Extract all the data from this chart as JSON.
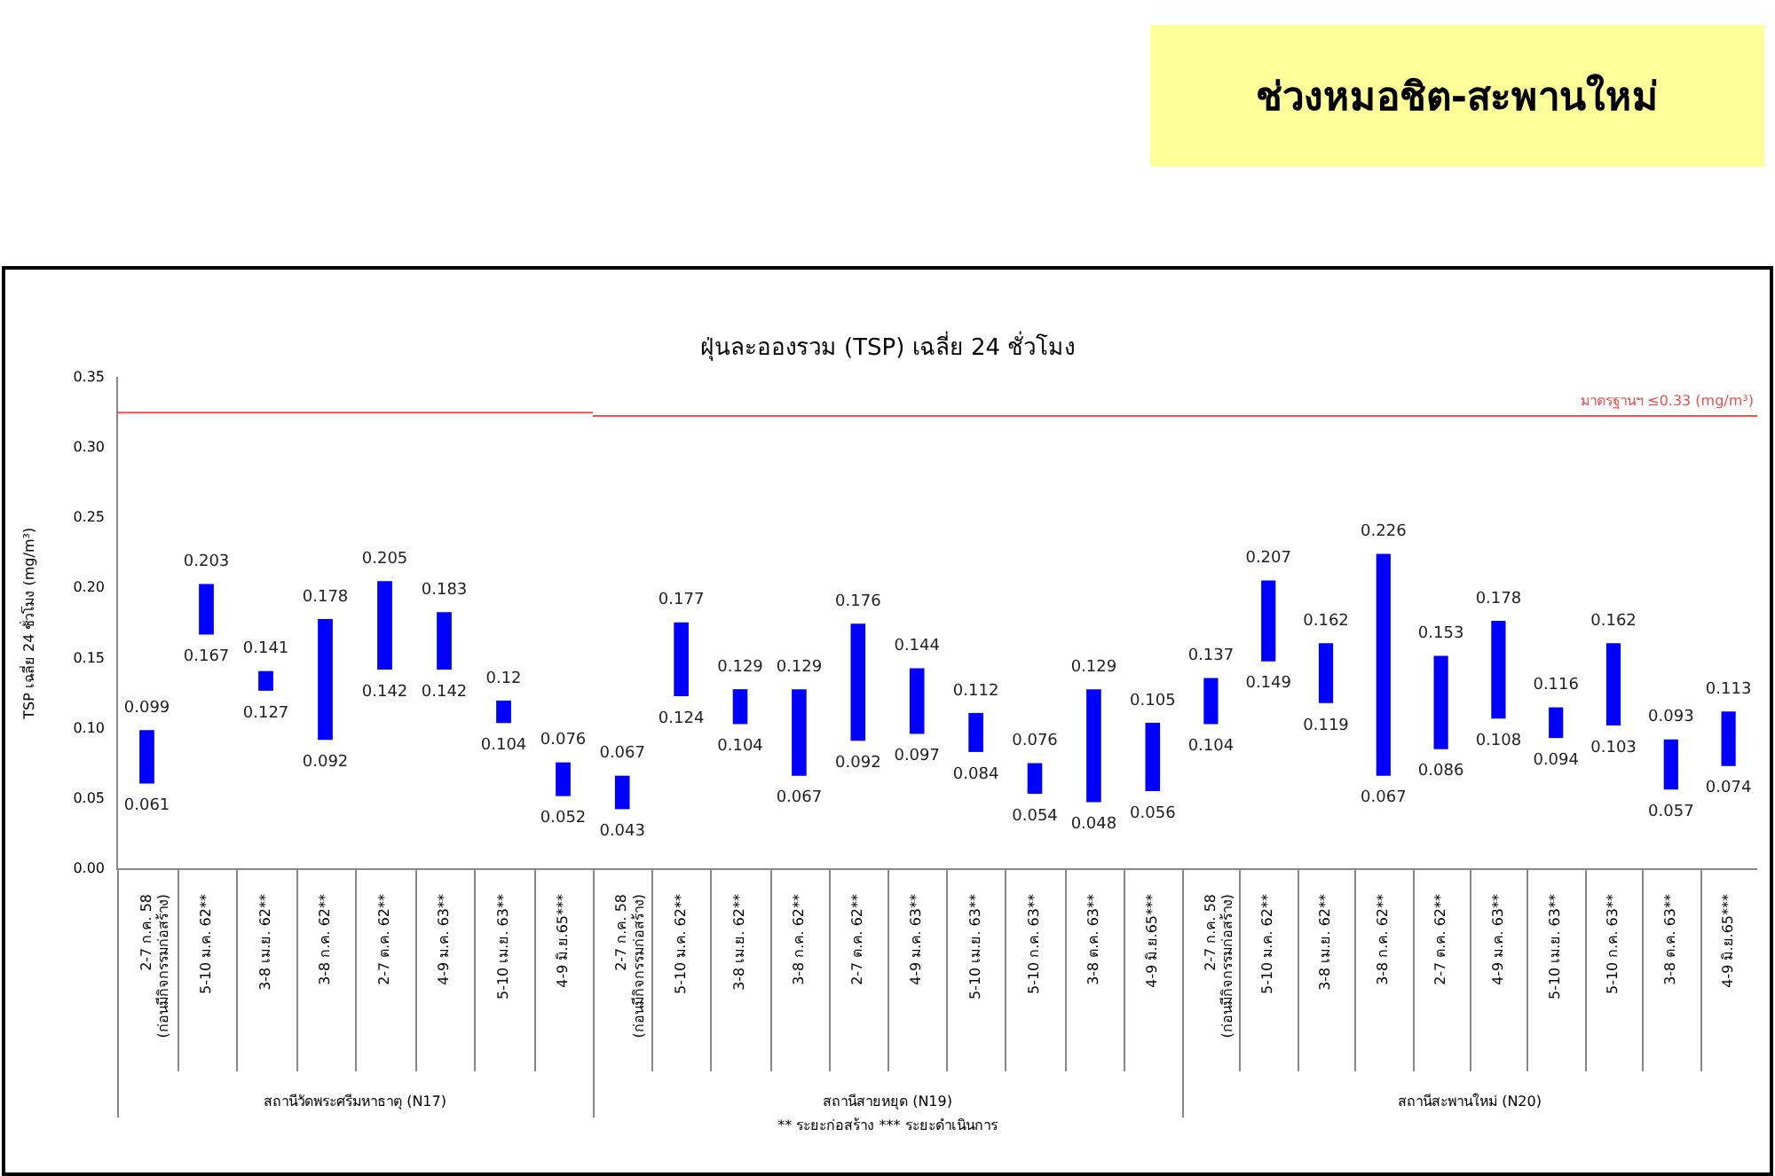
{
  "chart_data": [
    {
      "type": "bar",
      "ylabel": "TSP เฉลี่ย 24 ชั่วโมง (mg/m³)",
      "xlabel": "สถานีวัดพระศรีมหาธาตุ (N17)",
      "categories": [
        "2-7 ก.ค. 58\n(ก่อนมีกิจกรรมก่อสร้าง)",
        "5-10 ม.ค. 62**",
        "3-8 เม.ย. 62**",
        "3-8 ก.ค. 62**",
        "2-7 ต.ค. 62**",
        "4-9 ม.ค. 63**",
        "5-10 เม.ย. 63**",
        "4-9 มิ.ย.65***"
      ],
      "base": [
        0.061,
        0.167,
        0.127,
        0.092,
        0.142,
        0.142,
        0.104,
        0.052
      ],
      "values": [
        0.038,
        0.036,
        0.014,
        0.086,
        0.063,
        0.041,
        0.016,
        0.024
      ],
      "value_labels": [
        "0.099",
        "0.203",
        "0.141",
        "0.178",
        "0.205",
        "0.183",
        "0.12",
        "0.076"
      ],
      "color": "#0000ff",
      "ylim": [
        0,
        0.35
      ],
      "yticks": [
        {
          "value": 0,
          "label": "0.00"
        },
        {
          "value": 0.05,
          "label": "0.05"
        },
        {
          "value": 0.1,
          "label": "0.10"
        },
        {
          "value": 0.15,
          "label": "0.15"
        },
        {
          "value": 0.2,
          "label": "0.20"
        },
        {
          "value": 0.25,
          "label": "0.25"
        },
        {
          "value": 0.3,
          "label": "0.30"
        },
        {
          "value": 0.35,
          "label": "0.35"
        }
      ],
      "ref_lines": [
        {
          "axis": "y",
          "value": 0.325,
          "color": "#f05050"
        }
      ],
      "annotations": [
        {
          "text": "0.061",
          "x": "2-7 ก.ค. 58\n(ก่อนมีกิจกรรมก่อสร้าง)",
          "y": 0.061
        },
        {
          "text": "0.167",
          "x": "5-10 ม.ค. 62**",
          "y": 0.167
        },
        {
          "text": "0.127",
          "x": "3-8 เม.ย. 62**",
          "y": 0.127
        },
        {
          "text": "0.092",
          "x": "3-8 ก.ค. 62**",
          "y": 0.092
        },
        {
          "text": "0.142",
          "x": "2-7 ต.ค. 62**",
          "y": 0.142
        },
        {
          "text": "0.142",
          "x": "4-9 ม.ค. 63**",
          "y": 0.142
        },
        {
          "text": "0.104",
          "x": "5-10 เม.ย. 63**",
          "y": 0.104
        },
        {
          "text": "0.052",
          "x": "4-9 มิ.ย.65***",
          "y": 0.052
        }
      ]
    },
    {
      "type": "bar",
      "title": "ฝุ่นละอองรวม (TSP) เฉลี่ย 24 ชั่วโมง",
      "xlabel": "สถานีสายหยุด (N19)",
      "tick_labels": "x",
      "categories": [
        "2-7 ก.ค. 58\n(ก่อนมีกิจกรรมก่อสร้าง)",
        "5-10 ม.ค. 62**",
        "3-8 เม.ย. 62**",
        "3-8 ก.ค. 62**",
        "2-7 ต.ค. 62**",
        "4-9 ม.ค. 63**",
        "5-10 เม.ย. 63**",
        "5-10 ก.ค. 63**",
        "3-8 ต.ค. 63**",
        "4-9 มิ.ย.65***"
      ],
      "base": [
        0.043,
        0.124,
        0.104,
        0.067,
        0.092,
        0.097,
        0.084,
        0.054,
        0.048,
        0.056
      ],
      "values": [
        0.024,
        0.053,
        0.025,
        0.062,
        0.084,
        0.047,
        0.028,
        0.022,
        0.081,
        0.049
      ],
      "value_labels": [
        "0.067",
        "0.177",
        "0.129",
        "0.129",
        "0.176",
        "0.144",
        "0.112",
        "0.076",
        "0.129",
        "0.105"
      ],
      "color": "#0000ff",
      "ylim": [
        0,
        0.35
      ],
      "ref_lines": [
        {
          "axis": "y",
          "value": 0.325,
          "color": "#f05050"
        }
      ],
      "annotations": [
        "** ระยะก่อสร้าง    *** ระยะดำเนินการ",
        {
          "text": "0.043",
          "x": "2-7 ก.ค. 58\n(ก่อนมีกิจกรรมก่อสร้าง)",
          "y": 0.043
        },
        {
          "text": "0.124",
          "x": "5-10 ม.ค. 62**",
          "y": 0.124
        },
        {
          "text": "0.104",
          "x": "3-8 เม.ย. 62**",
          "y": 0.104
        },
        {
          "text": "0.067",
          "x": "3-8 ก.ค. 62**",
          "y": 0.067
        },
        {
          "text": "0.092",
          "x": "2-7 ต.ค. 62**",
          "y": 0.092
        },
        {
          "text": "0.097",
          "x": "4-9 ม.ค. 63**",
          "y": 0.097
        },
        {
          "text": "0.084",
          "x": "5-10 เม.ย. 63**",
          "y": 0.084
        },
        {
          "text": "0.054",
          "x": "5-10 ก.ค. 63**",
          "y": 0.054
        },
        {
          "text": "0.048",
          "x": "3-8 ต.ค. 63**",
          "y": 0.048
        },
        {
          "text": "0.056",
          "x": "4-9 มิ.ย.65***",
          "y": 0.056
        }
      ]
    },
    {
      "type": "bar",
      "xlabel": "สถานีสะพานใหม่ (N20)",
      "tick_labels": "x",
      "categories": [
        "2-7 ก.ค. 58\n(ก่อนมีกิจกรรมก่อสร้าง)",
        "5-10 ม.ค. 62**",
        "3-8 เม.ย. 62**",
        "3-8 ก.ค. 62**",
        "2-7 ต.ค. 62**",
        "4-9 ม.ค. 63**",
        "5-10 เม.ย. 63**",
        "5-10 ก.ค. 63**",
        "3-8 ต.ค. 63**",
        "4-9 มิ.ย.65***"
      ],
      "base": [
        0.104,
        0.149,
        0.119,
        0.067,
        0.086,
        0.108,
        0.094,
        0.103,
        0.057,
        0.074
      ],
      "values": [
        0.033,
        0.058,
        0.043,
        0.159,
        0.067,
        0.07,
        0.022,
        0.059,
        0.036,
        0.039
      ],
      "value_labels": [
        "0.137",
        "0.207",
        "0.162",
        "0.226",
        "0.153",
        "0.178",
        "0.116",
        "0.162",
        "0.093",
        "0.113"
      ],
      "color": "#0000ff",
      "ylim": [
        0,
        0.35
      ],
      "ref_lines": [
        {
          "axis": "y",
          "value": 0.325,
          "label": "มาตรฐานฯ ≤0.33 (mg/m³)",
          "color": "#f05050"
        }
      ],
      "annotations": [
        "ช่วงหมอชิต-สะพานใหม่",
        {
          "text": "0.104",
          "x": "2-7 ก.ค. 58\n(ก่อนมีกิจกรรมก่อสร้าง)",
          "y": 0.104
        },
        {
          "text": "0.149",
          "x": "5-10 ม.ค. 62**",
          "y": 0.149
        },
        {
          "text": "0.119",
          "x": "3-8 เม.ย. 62**",
          "y": 0.119
        },
        {
          "text": "0.067",
          "x": "3-8 ก.ค. 62**",
          "y": 0.067
        },
        {
          "text": "0.086",
          "x": "2-7 ต.ค. 62**",
          "y": 0.086
        },
        {
          "text": "0.108",
          "x": "4-9 ม.ค. 63**",
          "y": 0.108
        },
        {
          "text": "0.094",
          "x": "5-10 เม.ย. 63**",
          "y": 0.094
        },
        {
          "text": "0.103",
          "x": "5-10 ก.ค. 63**",
          "y": 0.103
        },
        {
          "text": "0.057",
          "x": "3-8 ต.ค. 63**",
          "y": 0.057
        },
        {
          "text": "0.074",
          "x": "4-9 มิ.ย.65***",
          "y": 0.074
        }
      ]
    }
  ]
}
